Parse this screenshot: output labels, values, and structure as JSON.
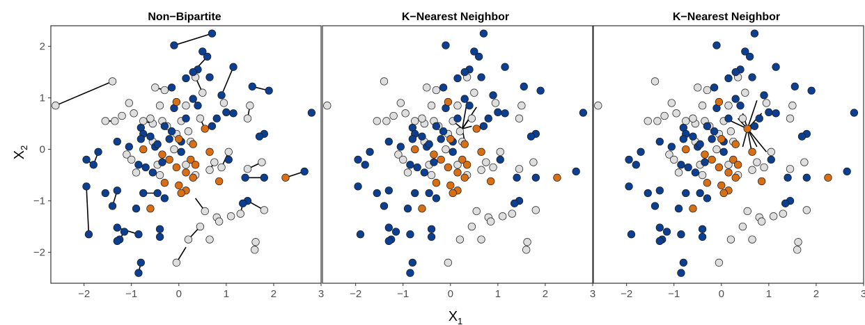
{
  "chart_data": [
    {
      "type": "scatter",
      "title": "Non−Bipartite",
      "connections": "matched pairs",
      "xlim": [
        -2.7,
        3.0
      ],
      "ylim": [
        -2.6,
        2.4
      ],
      "x_ticks": [
        -2,
        -1,
        0,
        1,
        2,
        3
      ],
      "x_tick_labels": [
        "−2",
        "−1",
        "0",
        "1",
        "2",
        "3"
      ],
      "y_ticks": [
        -2,
        -1,
        0,
        1,
        2
      ],
      "y_tick_labels": [
        "−2",
        "−1",
        "0",
        "1",
        "2"
      ],
      "grid": false
    },
    {
      "type": "scatter",
      "title": "K−Nearest Neighbor",
      "connections": "k nearest neighbors of one focal point",
      "xlim": [
        -2.7,
        3.0
      ],
      "ylim": [
        -2.6,
        2.4
      ],
      "x_ticks": [
        -2,
        -1,
        0,
        1,
        2,
        3
      ],
      "x_tick_labels": [
        "−2",
        "−1",
        "0",
        "1",
        "2",
        "3"
      ],
      "focal": [
        0.25,
        0.4
      ],
      "neighbors": [
        [
          0.55,
          0.82
        ],
        [
          0.35,
          0.92
        ],
        [
          0.2,
          0.3
        ],
        [
          0.3,
          0.15
        ],
        [
          0.45,
          0.45
        ],
        [
          0.42,
          0.62
        ],
        [
          0.05,
          0.55
        ],
        [
          0.15,
          0.35
        ]
      ],
      "grid": false
    },
    {
      "type": "scatter",
      "title": "K−Nearest Neighbor",
      "connections": "k nearest neighbors of one focal point",
      "xlim": [
        -2.7,
        3.0
      ],
      "ylim": [
        -2.6,
        2.4
      ],
      "x_ticks": [
        -2,
        -1,
        0,
        1,
        2,
        3
      ],
      "x_tick_labels": [
        "−2",
        "−1",
        "0",
        "1",
        "2",
        "3"
      ],
      "focal": [
        0.55,
        0.4
      ],
      "neighbors": [
        [
          0.2,
          0.55
        ],
        [
          0.35,
          0.6
        ],
        [
          0.45,
          0.7
        ],
        [
          0.75,
          0.95
        ],
        [
          0.85,
          0.7
        ],
        [
          0.95,
          -0.05
        ],
        [
          0.75,
          0.05
        ],
        [
          0.65,
          -0.1
        ],
        [
          0.45,
          0.05
        ]
      ],
      "grid": false
    }
  ],
  "points": {
    "orange": [
      [
        -0.05,
        0.92
      ],
      [
        0.55,
        0.4
      ],
      [
        0.3,
        0.1
      ],
      [
        0.0,
        0.2
      ],
      [
        -0.75,
        0.0
      ],
      [
        -0.35,
        -0.1
      ],
      [
        -0.2,
        -0.2
      ],
      [
        0.25,
        -0.2
      ],
      [
        0.65,
        -0.05
      ],
      [
        -0.05,
        -0.35
      ],
      [
        0.15,
        -0.45
      ],
      [
        0.3,
        -0.55
      ],
      [
        -0.3,
        -0.65
      ],
      [
        0.0,
        -0.7
      ],
      [
        0.15,
        -0.8
      ],
      [
        0.85,
        -0.62
      ],
      [
        -0.6,
        -1.15
      ],
      [
        0.05,
        -0.85
      ],
      [
        0.35,
        -0.3
      ],
      [
        2.25,
        -0.55
      ]
    ],
    "grey": [
      [
        -2.6,
        0.85
      ],
      [
        -1.4,
        1.32
      ],
      [
        -0.5,
        1.2
      ],
      [
        0.35,
        1.4
      ],
      [
        0.5,
        1.1
      ],
      [
        -0.3,
        1.15
      ],
      [
        -0.4,
        0.85
      ],
      [
        -1.05,
        0.9
      ],
      [
        -0.95,
        0.7
      ],
      [
        -1.2,
        0.65
      ],
      [
        -1.35,
        0.55
      ],
      [
        -1.55,
        0.55
      ],
      [
        -0.75,
        0.55
      ],
      [
        -0.55,
        0.5
      ],
      [
        -0.6,
        0.6
      ],
      [
        -0.35,
        0.55
      ],
      [
        -0.25,
        0.45
      ],
      [
        0.05,
        0.55
      ],
      [
        0.2,
        0.35
      ],
      [
        0.45,
        0.6
      ],
      [
        0.15,
        0.85
      ],
      [
        0.95,
        0.9
      ],
      [
        1.5,
        0.85
      ],
      [
        1.45,
        0.6
      ],
      [
        -0.05,
        0.3
      ],
      [
        0.25,
        0.15
      ],
      [
        -0.55,
        0.15
      ],
      [
        -1.1,
        -0.1
      ],
      [
        -1.0,
        -0.2
      ],
      [
        -0.4,
        -0.5
      ],
      [
        0.15,
        -0.3
      ],
      [
        0.35,
        -0.5
      ],
      [
        -0.1,
        0.0
      ],
      [
        0.75,
        -0.25
      ],
      [
        0.65,
        -0.4
      ],
      [
        1.45,
        -0.38
      ],
      [
        1.75,
        -0.25
      ],
      [
        1.3,
        -1.25
      ],
      [
        1.1,
        -1.3
      ],
      [
        0.8,
        -1.32
      ],
      [
        0.85,
        -1.4
      ],
      [
        0.45,
        -1.5
      ],
      [
        0.2,
        -1.75
      ],
      [
        -0.05,
        -2.2
      ],
      [
        0.55,
        -1.2
      ],
      [
        1.62,
        -1.8
      ],
      [
        1.6,
        -1.95
      ],
      [
        1.8,
        -1.18
      ],
      [
        0.65,
        -1.75
      ],
      [
        -0.9,
        -0.45
      ],
      [
        1.05,
        -0.05
      ],
      [
        0.9,
        -0.35
      ],
      [
        -0.45,
        -0.3
      ]
    ],
    "blue": [
      [
        -0.1,
        2.02
      ],
      [
        0.7,
        2.25
      ],
      [
        0.5,
        1.9
      ],
      [
        0.6,
        1.8
      ],
      [
        0.4,
        1.55
      ],
      [
        0.3,
        1.5
      ],
      [
        1.15,
        1.6
      ],
      [
        0.65,
        1.4
      ],
      [
        0.9,
        1.05
      ],
      [
        1.55,
        1.22
      ],
      [
        1.9,
        1.14
      ],
      [
        0.15,
        1.38
      ],
      [
        -0.15,
        1.2
      ],
      [
        -0.1,
        0.8
      ],
      [
        0.3,
        0.98
      ],
      [
        0.4,
        0.85
      ],
      [
        1.0,
        0.72
      ],
      [
        1.15,
        0.7
      ],
      [
        2.8,
        0.71
      ],
      [
        0.7,
        0.45
      ],
      [
        0.8,
        0.6
      ],
      [
        1.8,
        0.3
      ],
      [
        1.7,
        0.25
      ],
      [
        0.15,
        0.6
      ],
      [
        -0.3,
        0.45
      ],
      [
        -0.15,
        0.35
      ],
      [
        -0.8,
        0.42
      ],
      [
        -0.75,
        0.3
      ],
      [
        -0.6,
        0.25
      ],
      [
        -0.5,
        0.05
      ],
      [
        -0.8,
        0.2
      ],
      [
        -0.45,
        0.1
      ],
      [
        -1.05,
        0.05
      ],
      [
        -1.3,
        0.15
      ],
      [
        -1.7,
        -0.05
      ],
      [
        -1.95,
        -0.2
      ],
      [
        -1.8,
        -0.3
      ],
      [
        -0.85,
        -0.3
      ],
      [
        -0.55,
        -0.45
      ],
      [
        -0.35,
        -0.25
      ],
      [
        0.05,
        -0.05
      ],
      [
        -0.2,
        0.2
      ],
      [
        1.05,
        -0.2
      ],
      [
        1.4,
        -0.55
      ],
      [
        1.8,
        -0.55
      ],
      [
        2.65,
        -0.43
      ],
      [
        -1.3,
        -0.8
      ],
      [
        -1.55,
        -0.85
      ],
      [
        -0.75,
        -0.85
      ],
      [
        -0.9,
        -1.15
      ],
      [
        -0.45,
        -0.85
      ],
      [
        -0.3,
        -0.95
      ],
      [
        -1.95,
        -0.72
      ],
      [
        1.45,
        -1.0
      ],
      [
        1.35,
        -1.05
      ],
      [
        -1.4,
        -1.1
      ],
      [
        -1.9,
        -1.65
      ],
      [
        -1.3,
        -1.52
      ],
      [
        -1.15,
        -1.6
      ],
      [
        -1.25,
        -1.75
      ],
      [
        -1.3,
        -1.78
      ],
      [
        -0.85,
        -1.65
      ],
      [
        -0.4,
        -1.55
      ],
      [
        -0.4,
        -1.7
      ],
      [
        -0.8,
        -2.2
      ],
      [
        -0.85,
        -2.4
      ],
      [
        0.05,
        0.15
      ],
      [
        -0.7,
        -0.35
      ]
    ]
  },
  "pairs": [
    [
      [
        -2.6,
        0.85
      ],
      [
        -1.4,
        1.32
      ]
    ],
    [
      [
        -0.1,
        2.02
      ],
      [
        0.7,
        2.25
      ]
    ],
    [
      [
        0.9,
        1.05
      ],
      [
        1.15,
        1.6
      ]
    ],
    [
      [
        1.55,
        1.22
      ],
      [
        1.9,
        1.14
      ]
    ],
    [
      [
        0.3,
        1.5
      ],
      [
        0.6,
        1.8
      ]
    ],
    [
      [
        0.3,
        0.98
      ],
      [
        0.4,
        0.85
      ]
    ],
    [
      [
        1.0,
        0.72
      ],
      [
        1.15,
        0.7
      ]
    ],
    [
      [
        1.5,
        0.85
      ],
      [
        1.45,
        0.6
      ]
    ],
    [
      [
        -1.95,
        -0.2
      ],
      [
        -1.8,
        -0.3
      ]
    ],
    [
      [
        -1.7,
        -0.05
      ],
      [
        -1.8,
        -0.3
      ]
    ],
    [
      [
        1.8,
        0.3
      ],
      [
        1.7,
        0.25
      ]
    ],
    [
      [
        1.45,
        -0.38
      ],
      [
        1.75,
        -0.25
      ]
    ],
    [
      [
        1.4,
        -0.55
      ],
      [
        1.8,
        -0.55
      ]
    ],
    [
      [
        2.25,
        -0.55
      ],
      [
        2.65,
        -0.43
      ]
    ],
    [
      [
        -1.3,
        -0.8
      ],
      [
        -1.4,
        -1.1
      ]
    ],
    [
      [
        -1.95,
        -0.72
      ],
      [
        -1.9,
        -1.65
      ]
    ],
    [
      [
        -0.75,
        -0.85
      ],
      [
        -0.45,
        -0.85
      ]
    ],
    [
      [
        1.45,
        -1.0
      ],
      [
        1.8,
        -1.18
      ]
    ],
    [
      [
        1.3,
        -1.25
      ],
      [
        1.35,
        -1.05
      ]
    ],
    [
      [
        -1.3,
        -1.52
      ],
      [
        -0.85,
        -1.65
      ]
    ],
    [
      [
        -1.15,
        -1.6
      ],
      [
        -1.25,
        -1.75
      ]
    ],
    [
      [
        -0.4,
        -1.55
      ],
      [
        -0.4,
        -1.7
      ]
    ],
    [
      [
        -0.8,
        -2.2
      ],
      [
        -0.85,
        -2.4
      ]
    ],
    [
      [
        0.2,
        -1.75
      ],
      [
        0.45,
        -1.5
      ]
    ],
    [
      [
        -0.05,
        -2.2
      ],
      [
        0.15,
        -1.9
      ]
    ],
    [
      [
        0.55,
        -1.2
      ],
      [
        0.35,
        -0.95
      ]
    ],
    [
      [
        0.8,
        -1.32
      ],
      [
        0.85,
        -1.4
      ]
    ],
    [
      [
        1.62,
        -1.8
      ],
      [
        1.6,
        -1.95
      ]
    ],
    [
      [
        0.9,
        -0.35
      ],
      [
        1.05,
        -0.05
      ]
    ],
    [
      [
        -0.75,
        0.55
      ],
      [
        -0.55,
        0.5
      ]
    ],
    [
      [
        -0.35,
        0.55
      ],
      [
        -0.25,
        0.45
      ]
    ],
    [
      [
        0.45,
        0.6
      ],
      [
        0.55,
        0.4
      ]
    ],
    [
      [
        -1.35,
        0.55
      ],
      [
        -1.55,
        0.55
      ]
    ],
    [
      [
        -0.5,
        1.2
      ],
      [
        -0.3,
        1.15
      ]
    ],
    [
      [
        0.35,
        1.4
      ],
      [
        0.5,
        1.1
      ]
    ],
    [
      [
        0.65,
        -0.4
      ],
      [
        0.75,
        -0.25
      ]
    ],
    [
      [
        -0.6,
        -1.15
      ],
      [
        -0.55,
        -1.2
      ]
    ]
  ],
  "axes": {
    "x_title": "X",
    "x_sub": "1",
    "y_title": "X",
    "y_sub": "2"
  },
  "colors": {
    "blue": "#0c3f8f",
    "orange": "#d96f14",
    "grey": "#dedede",
    "outline": "#1a1a1a",
    "line": "#000000",
    "panel_border": "#333333"
  }
}
